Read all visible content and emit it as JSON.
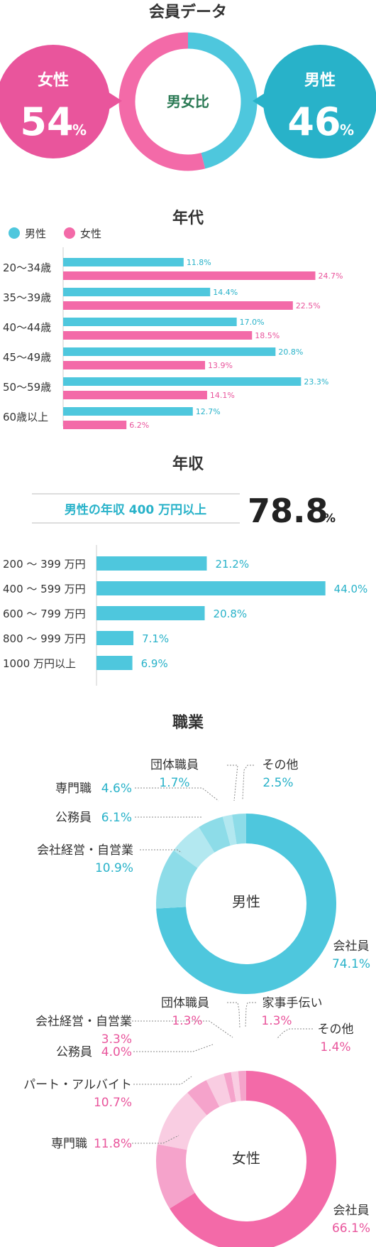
{
  "member_data": {
    "title": "会員データ",
    "center_label": "男女比",
    "female": {
      "label": "女性",
      "value": "54",
      "unit": "%"
    },
    "male": {
      "label": "男性",
      "value": "46",
      "unit": "%"
    },
    "colors": {
      "male": "#4ec7dd",
      "female": "#f36aa8",
      "male_bubble": "#28b2c9",
      "female_bubble": "#e9559c"
    },
    "chart_data": {
      "type": "pie",
      "categories": [
        "男性",
        "女性"
      ],
      "values": [
        46,
        54
      ]
    }
  },
  "age": {
    "title": "年代",
    "legend": [
      "男性",
      "女性"
    ],
    "chart_data": {
      "type": "bar",
      "categories": [
        "20～34歳",
        "35～39歳",
        "40～44歳",
        "45～49歳",
        "50～59歳",
        "60歳以上"
      ],
      "series": [
        {
          "name": "男性",
          "values": [
            11.8,
            14.4,
            17.0,
            20.8,
            23.3,
            12.7
          ],
          "labels": [
            "11.8%",
            "14.4%",
            "17.0%",
            "20.8%",
            "23.3%",
            "12.7%"
          ]
        },
        {
          "name": "女性",
          "values": [
            24.7,
            22.5,
            18.5,
            13.9,
            14.1,
            6.2
          ],
          "labels": [
            "24.7%",
            "22.5%",
            "18.5%",
            "13.9%",
            "14.1%",
            "6.2%"
          ]
        }
      ],
      "xlim": [
        0,
        25.5
      ]
    }
  },
  "income": {
    "title": "年収",
    "highlight_label": "男性の年収 400 万円以上",
    "highlight_value": "78.8",
    "highlight_unit": "%",
    "chart_data": {
      "type": "bar",
      "categories": [
        "200 ～ 399 万円",
        "400 ～ 599 万円",
        "600 ～ 799 万円",
        "800 ～ 999 万円",
        "1000 万円以上"
      ],
      "values": [
        21.2,
        44.0,
        20.8,
        7.1,
        6.9
      ],
      "labels": [
        "21.2%",
        "44.0%",
        "20.8%",
        "7.1%",
        "6.9%"
      ],
      "xlim": [
        0,
        45
      ]
    }
  },
  "occupation": {
    "title": "職業",
    "male_chart": {
      "type": "pie",
      "center": "男性",
      "slices": [
        {
          "name": "会社員",
          "value": 74.1,
          "label": "74.1%",
          "color": "#4ec7dd"
        },
        {
          "name": "会社経営・自営業",
          "value": 10.9,
          "label": "10.9%",
          "color": "#8ddce8"
        },
        {
          "name": "公務員",
          "value": 6.1,
          "label": "6.1%",
          "color": "#b3e8f0"
        },
        {
          "name": "専門職",
          "value": 4.6,
          "label": "4.6%",
          "color": "#8ddce8"
        },
        {
          "name": "団体職員",
          "value": 1.7,
          "label": "1.7%",
          "color": "#b3e8f0"
        },
        {
          "name": "その他",
          "value": 2.5,
          "label": "2.5%",
          "color": "#8ddce8"
        }
      ]
    },
    "female_chart": {
      "type": "pie",
      "center": "女性",
      "slices": [
        {
          "name": "会社員",
          "value": 66.1,
          "label": "66.1%",
          "color": "#f36aa8"
        },
        {
          "name": "専門職",
          "value": 11.8,
          "label": "11.8%",
          "color": "#f5a3cb"
        },
        {
          "name": "パート・アルバイト",
          "value": 10.7,
          "label": "10.7%",
          "color": "#f9cde2"
        },
        {
          "name": "公務員",
          "value": 4.0,
          "label": "4.0%",
          "color": "#f5a3cb"
        },
        {
          "name": "会社経営・自営業",
          "value": 3.3,
          "label": "3.3%",
          "color": "#f9cde2"
        },
        {
          "name": "団体職員",
          "value": 1.3,
          "label": "1.3%",
          "color": "#f5a3cb"
        },
        {
          "name": "家事手伝い",
          "value": 1.3,
          "label": "1.3%",
          "color": "#f9cde2"
        },
        {
          "name": "その他",
          "value": 1.4,
          "label": "1.4%",
          "color": "#f5a3cb"
        }
      ]
    }
  }
}
